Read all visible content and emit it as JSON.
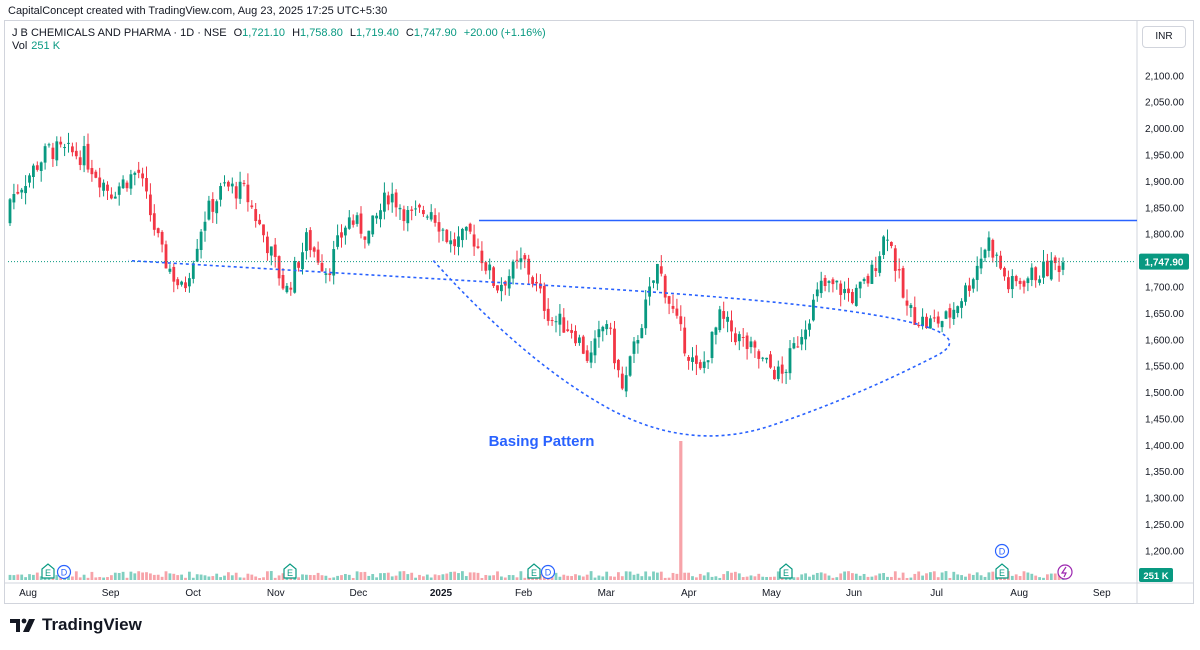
{
  "header": {
    "credit": "CapitalConcept created with TradingView.com, Aug 23, 2025 17:25 UTC+5:30",
    "symbol": "J B CHEMICALS AND PHARMA · 1D · NSE",
    "open_label": "O",
    "open": "1,721.10",
    "high_label": "H",
    "high": "1,758.80",
    "low_label": "L",
    "low": "1,719.40",
    "close_label": "C",
    "close": "1,747.90",
    "change": "+20.00 (+1.16%)",
    "vol_label": "Vol",
    "vol": "251 K"
  },
  "currency": "INR",
  "brand": "TradingView",
  "colors": {
    "up": "#089981",
    "down": "#f23645",
    "resistance": "#2962ff",
    "pattern": "#2962ff",
    "price_tag": "#089981",
    "vol_up": "#7fcfc0",
    "vol_down": "#f7a3a9"
  },
  "chart_data": {
    "type": "candlestick",
    "y_axis_ticks": [
      "2,100.00",
      "2,050.00",
      "2,000.00",
      "1,950.00",
      "1,900.00",
      "1,850.00",
      "1,800.00",
      "1,750.00",
      "1,700.00",
      "1,650.00",
      "1,600.00",
      "1,550.00",
      "1,500.00",
      "1,450.00",
      "1,400.00",
      "1,350.00",
      "1,300.00",
      "1,250.00",
      "1,200.00"
    ],
    "ylim": [
      1160,
      2130
    ],
    "x_axis_labels": [
      "Aug",
      "Sep",
      "Oct",
      "Nov",
      "Dec",
      "2025",
      "Feb",
      "Mar",
      "Apr",
      "May",
      "Jun",
      "Jul",
      "Aug",
      "Sep"
    ],
    "price_path": [
      [
        "Aug",
        1860
      ],
      [
        "Aug",
        1960
      ],
      [
        "Sep",
        1950
      ],
      [
        "Sep",
        1880
      ],
      [
        "Sep",
        1920
      ],
      [
        "Oct",
        1760
      ],
      [
        "Oct",
        1690
      ],
      [
        "Oct",
        1830
      ],
      [
        "Oct",
        1890
      ],
      [
        "Nov",
        1880
      ],
      [
        "Nov",
        1790
      ],
      [
        "Nov",
        1690
      ],
      [
        "Nov",
        1790
      ],
      [
        "Dec",
        1730
      ],
      [
        "Dec",
        1830
      ],
      [
        "Dec",
        1800
      ],
      [
        "Dec",
        1880
      ],
      [
        "2025",
        1830
      ],
      [
        "2025",
        1850
      ],
      [
        "2025",
        1780
      ],
      [
        "2025",
        1800
      ],
      [
        "Feb",
        1700
      ],
      [
        "Feb",
        1750
      ],
      [
        "Feb",
        1640
      ],
      [
        "Mar",
        1620
      ],
      [
        "Mar",
        1560
      ],
      [
        "Mar",
        1640
      ],
      [
        "Mar",
        1500
      ],
      [
        "Mar",
        1620
      ],
      [
        "Apr",
        1740
      ],
      [
        "Apr",
        1620
      ],
      [
        "Apr",
        1530
      ],
      [
        "Apr",
        1640
      ],
      [
        "May",
        1600
      ],
      [
        "May",
        1560
      ],
      [
        "May",
        1530
      ],
      [
        "May",
        1620
      ],
      [
        "Jun",
        1700
      ],
      [
        "Jun",
        1700
      ],
      [
        "Jun",
        1680
      ],
      [
        "Jun",
        1720
      ],
      [
        "Jun",
        1810
      ],
      [
        "Jul",
        1660
      ],
      [
        "Jul",
        1630
      ],
      [
        "Jul",
        1640
      ],
      [
        "Jul",
        1700
      ],
      [
        "Aug",
        1790
      ],
      [
        "Aug",
        1700
      ],
      [
        "Aug",
        1720
      ],
      [
        "Aug",
        1748
      ]
    ],
    "last_price": 1747.9,
    "last_price_label": "1,747.90",
    "resistance_level": 1826,
    "annotation": "Basing Pattern",
    "basing_curve": [
      [
        "Dec",
        1750
      ],
      [
        "Feb",
        1560
      ],
      [
        "Apr",
        1385
      ],
      [
        "Jun",
        1490
      ],
      [
        "Aug",
        1650
      ],
      [
        "Sep",
        1750
      ]
    ],
    "volume_spike": {
      "date": "Apr",
      "value": "high"
    },
    "volume_label": "251 K",
    "event_markers": [
      "E",
      "D",
      "E",
      "E",
      "D",
      "E",
      "E",
      "D",
      "E"
    ]
  }
}
